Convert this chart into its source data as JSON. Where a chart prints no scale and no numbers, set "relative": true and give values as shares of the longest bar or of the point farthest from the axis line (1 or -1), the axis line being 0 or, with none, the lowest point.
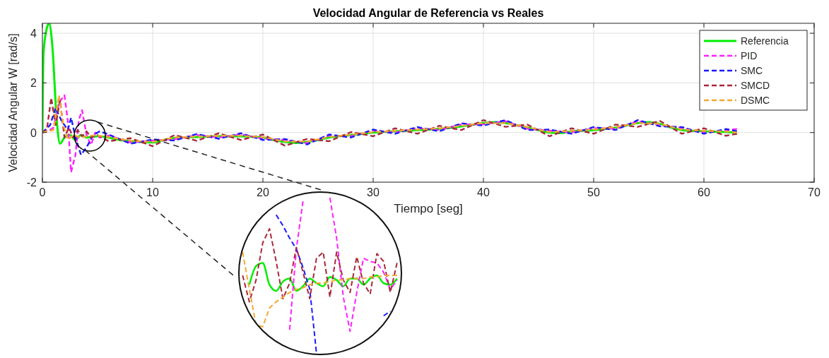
{
  "chart_data": [
    {
      "type": "line",
      "title": "Velocidad Angular de Referencia vs Reales",
      "xlabel": "Tiempo [seg]",
      "ylabel": "Velocidad Angular W [rad/s]",
      "xlim": [
        0,
        70
      ],
      "ylim": [
        -2,
        4.4
      ],
      "xticks": [
        0,
        10,
        20,
        30,
        40,
        50,
        60,
        70
      ],
      "yticks": [
        -2,
        0,
        2,
        4
      ],
      "grid": true,
      "legend": "top right",
      "series": [
        {
          "name": "Referencia",
          "color": "#00ee00",
          "line_style": "solid",
          "x": [
            0,
            0.1,
            0.4,
            0.6,
            0.9,
            1.3,
            1.6,
            2,
            2.5,
            3,
            3.5,
            4,
            5,
            6,
            7,
            8,
            9,
            10,
            11,
            12,
            14,
            16,
            18,
            20,
            21,
            22,
            23,
            24,
            25,
            26,
            28,
            30,
            32,
            34,
            36,
            38,
            40,
            41,
            42,
            43,
            44,
            45,
            46,
            47,
            48,
            50,
            52,
            54,
            55,
            56,
            57,
            58,
            60,
            62,
            63
          ],
          "values": [
            0,
            3.2,
            4.2,
            4.4,
            3.5,
            0.5,
            -0.45,
            -0.2,
            -0.1,
            -0.3,
            -0.1,
            -0.2,
            -0.15,
            -0.2,
            -0.3,
            -0.35,
            -0.38,
            -0.4,
            -0.3,
            -0.22,
            -0.18,
            -0.15,
            -0.15,
            -0.2,
            -0.3,
            -0.38,
            -0.42,
            -0.38,
            -0.3,
            -0.2,
            -0.1,
            0,
            0.05,
            0.1,
            0.15,
            0.25,
            0.38,
            0.42,
            0.38,
            0.3,
            0.2,
            0.1,
            0,
            -0.02,
            0.05,
            0.1,
            0.2,
            0.38,
            0.42,
            0.35,
            0.2,
            0.1,
            0.05,
            0.02,
            0
          ]
        },
        {
          "name": "PID",
          "color": "#ff22ff",
          "line_style": "dashed",
          "x": [
            0,
            0.5,
            1,
            1.5,
            2,
            2.3,
            2.6,
            3,
            3.3,
            3.6,
            4,
            4.4,
            4.8,
            5.2,
            6,
            8,
            10,
            12,
            14,
            16,
            18,
            20,
            22,
            24,
            26,
            28,
            30,
            32,
            34,
            36,
            38,
            40,
            42,
            44,
            46,
            48,
            50,
            52,
            54,
            56,
            58,
            60,
            62,
            63
          ],
          "values": [
            0,
            0.05,
            0.2,
            1.2,
            1.5,
            0.5,
            -1.6,
            -0.9,
            0.5,
            0.9,
            -0.1,
            -0.5,
            0,
            -0.2,
            -0.12,
            -0.4,
            -0.32,
            -0.27,
            -0.1,
            -0.2,
            -0.07,
            -0.25,
            -0.3,
            -0.43,
            -0.12,
            -0.15,
            0.08,
            0,
            0.18,
            0.1,
            0.33,
            0.33,
            0.46,
            0.15,
            0.08,
            0,
            0.18,
            0.15,
            0.46,
            0.3,
            0.18,
            0,
            0.1,
            0.14
          ]
        },
        {
          "name": "SMC",
          "color": "#1a1aff",
          "line_style": "dashed",
          "x": [
            0,
            0.7,
            1.2,
            1.7,
            2.3,
            2.6,
            3,
            3.5,
            4,
            4.6,
            5.2,
            6,
            8,
            10,
            12,
            14,
            16,
            18,
            20,
            22,
            24,
            26,
            28,
            30,
            32,
            34,
            36,
            38,
            40,
            42,
            44,
            46,
            48,
            50,
            52,
            54,
            56,
            58,
            60,
            62,
            63
          ],
          "values": [
            0,
            0.3,
            1,
            0.5,
            0.1,
            0.6,
            -0.2,
            -0.9,
            -0.6,
            -0.1,
            0.05,
            -0.08,
            -0.45,
            -0.28,
            -0.32,
            -0.06,
            -0.25,
            -0.03,
            -0.3,
            -0.26,
            -0.48,
            -0.08,
            -0.2,
            0.12,
            -0.05,
            0.22,
            0.05,
            0.37,
            0.28,
            0.5,
            0.1,
            0.12,
            -0.05,
            0.22,
            0.1,
            0.5,
            0.25,
            0.22,
            -0.05,
            0.14,
            0.05
          ]
        },
        {
          "name": "SMCD",
          "color": "#a8283c",
          "line_style": "dashed",
          "x": [
            0,
            0.4,
            0.8,
            1.2,
            1.6,
            2,
            2.4,
            2.8,
            3.2,
            3.6,
            4,
            4.4,
            5,
            6,
            8,
            10,
            12,
            14,
            16,
            18,
            20,
            22,
            24,
            26,
            28,
            30,
            32,
            34,
            36,
            38,
            40,
            42,
            44,
            46,
            48,
            50,
            52,
            54,
            56,
            58,
            60,
            62,
            63
          ],
          "values": [
            0,
            0.1,
            1.4,
            0.3,
            1.3,
            -0.2,
            0.2,
            -0.2,
            0.1,
            -0.15,
            0.05,
            -0.2,
            -0.1,
            -0.35,
            -0.23,
            -0.55,
            -0.1,
            -0.33,
            -0.03,
            -0.3,
            -0.08,
            -0.53,
            -0.26,
            -0.35,
            0.02,
            -0.15,
            0.17,
            -0.05,
            0.27,
            0.1,
            0.5,
            0.23,
            0.32,
            -0.15,
            0.17,
            -0.05,
            0.32,
            0.23,
            0.47,
            -0.05,
            0.17,
            -0.13,
            -0.05
          ]
        },
        {
          "name": "DSMC",
          "color": "#f5a833",
          "line_style": "dashed",
          "x": [
            0,
            0.5,
            1,
            1.5,
            1.9,
            2.3,
            2.8,
            3.5,
            4.5,
            5,
            6,
            8,
            10,
            12,
            14,
            16,
            18,
            20,
            22,
            24,
            26,
            28,
            30,
            32,
            34,
            36,
            38,
            40,
            42,
            44,
            46,
            48,
            50,
            52,
            54,
            56,
            58,
            60,
            62,
            63
          ],
          "values": [
            0,
            0.05,
            0.1,
            1.5,
            0.3,
            -0.3,
            -0.1,
            -0.2,
            -0.12,
            -0.12,
            -0.18,
            -0.33,
            -0.38,
            -0.2,
            -0.16,
            -0.13,
            -0.13,
            -0.18,
            -0.36,
            -0.36,
            -0.18,
            -0.08,
            0.02,
            0.07,
            0.12,
            0.17,
            0.27,
            0.38,
            0.38,
            0.22,
            0.02,
            0.07,
            0.12,
            0.22,
            0.38,
            0.35,
            0.12,
            0.07,
            0.04,
            0
          ]
        }
      ]
    },
    {
      "type": "line",
      "relative": true,
      "categories": [
        null,
        null,
        null,
        null,
        null,
        null,
        null,
        null,
        null,
        null,
        null,
        null,
        null,
        null,
        null,
        null,
        null,
        null,
        null,
        null,
        null,
        null,
        null,
        null
      ],
      "series": [
        {
          "color": "#00ee00",
          "line_style": "solid",
          "values": [
            null,
            0.44,
            0.56,
            0.58,
            0.44,
            0.4,
            0.46,
            0.48,
            0.4,
            0.43,
            0.48,
            0.45,
            0.43,
            0.49,
            0.47,
            0.43,
            0.48,
            0.48,
            0.44,
            0.48,
            0.5,
            0.45,
            0.44,
            0.48
          ]
        },
        {
          "color": "#ff22ff",
          "line_style": "dashed",
          "values": [
            null,
            null,
            null,
            null,
            null,
            null,
            null,
            0.15,
            0.67,
            0.98,
            null,
            null,
            null,
            1,
            0.74,
            0.36,
            0.14,
            0.39,
            0.61,
            0.59,
            0.58,
            0.52,
            0.41,
            0.47
          ]
        },
        {
          "color": "#1a1aff",
          "line_style": "dashed",
          "values": [
            null,
            null,
            null,
            null,
            null,
            0.89,
            0.82,
            0.74,
            0.67,
            0.55,
            0.41,
            0,
            null,
            null,
            null,
            null,
            null,
            null,
            null,
            null,
            null,
            0.24,
            0.27,
            null
          ]
        },
        {
          "color": "#a8283c",
          "line_style": "dashed",
          "values": [
            0.5,
            0.33,
            0.47,
            0.71,
            0.8,
            0.59,
            0.35,
            0.45,
            0.68,
            0.52,
            0.35,
            0.61,
            0.65,
            0.36,
            0.65,
            0.47,
            0.39,
            0.62,
            0.45,
            0.38,
            0.64,
            0.59,
            0.39,
            0.58
          ]
        },
        {
          "color": "#f5a833",
          "line_style": "dashed",
          "values": [
            0.65,
            0.41,
            0.18,
            0.17,
            0.29,
            0.33,
            0.36,
            0.39,
            0.41,
            0.42,
            0.44,
            0.45,
            0.45,
            0.46,
            0.47,
            0.47,
            0.48,
            0.48,
            0.48,
            0.49,
            0.49,
            0.5,
            0.5,
            0.5
          ]
        }
      ]
    }
  ]
}
